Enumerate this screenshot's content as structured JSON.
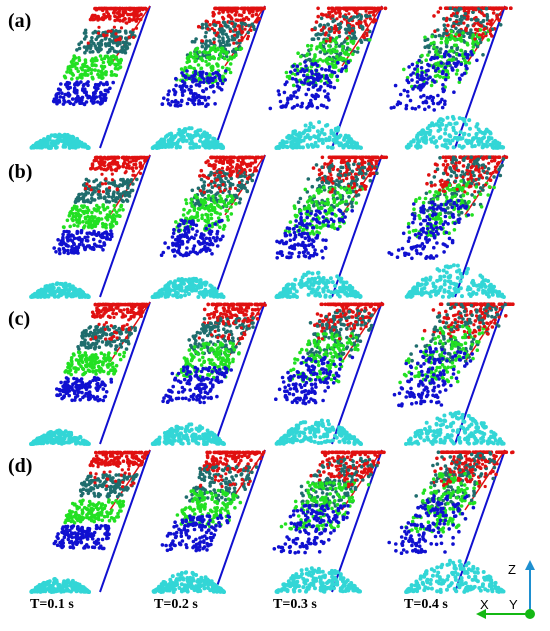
{
  "rows": [
    {
      "label": "(a)"
    },
    {
      "label": "(b)"
    },
    {
      "label": "(c)"
    },
    {
      "label": "(d)"
    }
  ],
  "times": [
    "T=0.1 s",
    "T=0.2 s",
    "T=0.3 s",
    "T=0.4 s"
  ],
  "axes": {
    "z": "Z",
    "x": "X",
    "y": "Y"
  },
  "colors": {
    "red": "#e01010",
    "teal": "#1f6d6d",
    "green": "#22e022",
    "blue": "#1010d0",
    "cyan": "#33d6d6",
    "axis": "#1e8fd0",
    "axis_x": "#14b814"
  }
}
